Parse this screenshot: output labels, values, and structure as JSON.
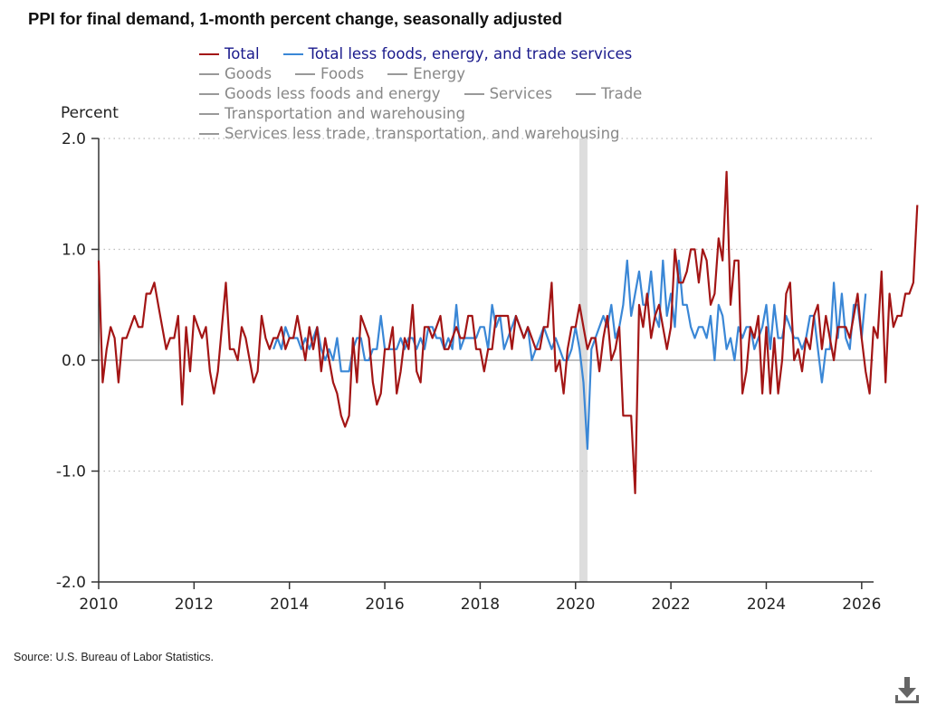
{
  "title": "PPI for final demand, 1-month percent change, seasonally adjusted",
  "source": "Source: U.S. Bureau of Labor Statistics.",
  "icons": {
    "download": "download-icon"
  },
  "legend": {
    "rows": [
      [
        {
          "label": "Total",
          "color": "#a31515",
          "active": true
        },
        {
          "label": "Total less foods, energy, and trade services",
          "color": "#3a87d6",
          "active": true
        }
      ],
      [
        {
          "label": "Goods",
          "color": "#999999",
          "active": false
        },
        {
          "label": "Foods",
          "color": "#999999",
          "active": false
        },
        {
          "label": "Energy",
          "color": "#999999",
          "active": false
        }
      ],
      [
        {
          "label": "Goods less foods and energy",
          "color": "#999999",
          "active": false
        },
        {
          "label": "Services",
          "color": "#999999",
          "active": false
        },
        {
          "label": "Trade",
          "color": "#999999",
          "active": false
        }
      ],
      [
        {
          "label": "Transportation and warehousing",
          "color": "#999999",
          "active": false
        }
      ],
      [
        {
          "label": "Services less trade, transportation, and warehousing",
          "color": "#999999",
          "active": false
        }
      ]
    ]
  },
  "chart_data": {
    "type": "line",
    "title": "PPI for final demand, 1-month percent change, seasonally adjusted",
    "ylabel": "Percent",
    "xlabel": "",
    "ylim": [
      -2.0,
      2.0
    ],
    "yticks": [
      2.0,
      1.0,
      0.0,
      -1.0,
      -2.0
    ],
    "ytick_labels": [
      "2.0",
      "1.0",
      "0.0",
      "-1.0",
      "-2.0"
    ],
    "xlim": [
      2010.0,
      2026.25
    ],
    "xticks": [
      2010,
      2012,
      2014,
      2016,
      2018,
      2020,
      2022,
      2024,
      2026
    ],
    "xtick_labels": [
      "2010",
      "2012",
      "2014",
      "2016",
      "2018",
      "2020",
      "2022",
      "2024",
      "2026"
    ],
    "grid": "horizontal dotted",
    "legend_position": "top",
    "recession_shading": [
      [
        2020.08,
        2020.25
      ]
    ],
    "series": [
      {
        "name": "Total",
        "color": "#a31515",
        "x_start": "2010-01",
        "values": [
          0.9,
          -0.2,
          0.1,
          0.3,
          0.2,
          -0.2,
          0.2,
          0.2,
          0.3,
          0.4,
          0.3,
          0.3,
          0.6,
          0.6,
          0.7,
          0.5,
          0.3,
          0.1,
          0.2,
          0.2,
          0.4,
          -0.4,
          0.3,
          -0.1,
          0.4,
          0.3,
          0.2,
          0.3,
          -0.1,
          -0.3,
          -0.1,
          0.3,
          0.7,
          0.1,
          0.1,
          0.0,
          0.3,
          0.2,
          0.0,
          -0.2,
          -0.1,
          0.4,
          0.2,
          0.1,
          0.2,
          0.2,
          0.3,
          0.1,
          0.2,
          0.2,
          0.4,
          0.2,
          0.0,
          0.3,
          0.1,
          0.3,
          -0.1,
          0.2,
          0.0,
          -0.2,
          -0.3,
          -0.5,
          -0.6,
          -0.5,
          0.2,
          -0.2,
          0.4,
          0.3,
          0.2,
          -0.2,
          -0.4,
          -0.3,
          0.1,
          0.1,
          0.3,
          -0.3,
          -0.1,
          0.2,
          0.1,
          0.5,
          -0.1,
          -0.2,
          0.3,
          0.3,
          0.2,
          0.3,
          0.4,
          0.1,
          0.1,
          0.2,
          0.3,
          0.2,
          0.2,
          0.4,
          0.4,
          0.1,
          0.1,
          -0.1,
          0.1,
          0.1,
          0.4,
          0.4,
          0.4,
          0.4,
          0.1,
          0.4,
          0.3,
          0.2,
          0.3,
          0.2,
          0.1,
          0.1,
          0.3,
          0.3,
          0.7,
          -0.1,
          0.0,
          -0.3,
          0.1,
          0.3,
          0.3,
          0.5,
          0.3,
          0.1,
          0.2,
          0.2,
          -0.1,
          0.2,
          0.4,
          0.0,
          0.1,
          0.3,
          -0.5,
          -0.5,
          -0.5,
          -1.2,
          0.5,
          0.3,
          0.6,
          0.2,
          0.4,
          0.5,
          0.3,
          0.1,
          0.3,
          1.0,
          0.7,
          0.7,
          0.8,
          1.0,
          1.0,
          0.7,
          1.0,
          0.9,
          0.5,
          0.6,
          1.1,
          0.9,
          1.7,
          0.5,
          0.9,
          0.9,
          -0.3,
          -0.1,
          0.3,
          0.2,
          0.4,
          -0.3,
          0.3,
          -0.3,
          0.2,
          -0.3,
          0.0,
          0.6,
          0.7,
          0.0,
          0.1,
          -0.1,
          0.2,
          0.1,
          0.4,
          0.5,
          0.1,
          0.4,
          0.2,
          0.0,
          0.3,
          0.3,
          0.3,
          0.2,
          0.4,
          0.6,
          0.2,
          -0.1,
          -0.3,
          0.3,
          0.2,
          0.8,
          -0.2,
          0.6,
          0.3,
          0.4,
          0.4,
          0.6,
          0.6,
          0.7,
          1.4
        ]
      },
      {
        "name": "Total less foods, energy, and trade services",
        "color": "#3a87d6",
        "x_start": "2013-09",
        "values": [
          0.1,
          0.2,
          0.1,
          0.3,
          0.2,
          0.2,
          0.2,
          0.1,
          0.2,
          0.1,
          0.2,
          0.3,
          0.1,
          0.0,
          0.1,
          0.0,
          0.2,
          -0.1,
          -0.1,
          -0.1,
          0.1,
          0.2,
          0.2,
          0.0,
          0.0,
          0.1,
          0.1,
          0.4,
          0.1,
          0.1,
          0.1,
          0.1,
          0.2,
          0.1,
          0.2,
          0.2,
          0.1,
          0.2,
          0.1,
          0.3,
          0.3,
          0.2,
          0.2,
          0.1,
          0.2,
          0.1,
          0.5,
          0.1,
          0.2,
          0.2,
          0.2,
          0.2,
          0.3,
          0.3,
          0.1,
          0.5,
          0.3,
          0.4,
          0.1,
          0.2,
          0.3,
          0.4,
          0.3,
          0.2,
          0.3,
          0.0,
          0.1,
          0.2,
          0.3,
          0.2,
          0.1,
          0.2,
          0.1,
          0.0,
          0.0,
          0.1,
          0.3,
          0.1,
          -0.2,
          -0.8,
          0.1,
          0.2,
          0.3,
          0.4,
          0.3,
          0.5,
          0.2,
          0.3,
          0.5,
          0.9,
          0.4,
          0.6,
          0.8,
          0.5,
          0.5,
          0.8,
          0.4,
          0.3,
          0.9,
          0.4,
          0.6,
          0.3,
          0.9,
          0.5,
          0.5,
          0.3,
          0.2,
          0.3,
          0.3,
          0.2,
          0.4,
          0.0,
          0.5,
          0.4,
          0.1,
          0.2,
          0.0,
          0.3,
          0.2,
          0.3,
          0.3,
          0.1,
          0.2,
          0.3,
          0.5,
          0.1,
          0.5,
          0.2,
          0.2,
          0.4,
          0.3,
          0.2,
          0.2,
          0.1,
          0.2,
          0.4,
          0.4,
          0.1,
          -0.2,
          0.1,
          0.1,
          0.7,
          0.2,
          0.6,
          0.2,
          0.1,
          0.5,
          0.5,
          0.2,
          0.6
        ]
      }
    ]
  }
}
